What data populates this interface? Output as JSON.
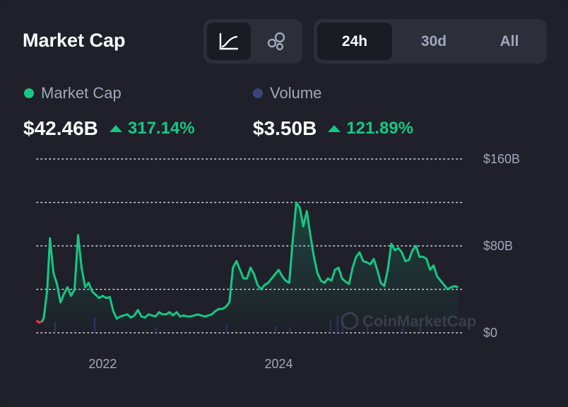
{
  "header": {
    "title": "Market Cap"
  },
  "view_toggle": {
    "options": [
      "line-chart-icon",
      "bubbles-icon"
    ],
    "selected": "line-chart-icon"
  },
  "range_toggle": {
    "options": [
      "24h",
      "30d",
      "All"
    ],
    "selected": "24h"
  },
  "metrics": {
    "market_cap": {
      "label": "Market Cap",
      "value": "$42.46B",
      "change": "317.14%",
      "color": "#16c784"
    },
    "volume": {
      "label": "Volume",
      "value": "$3.50B",
      "change": "121.89%",
      "color": "#3b4478"
    }
  },
  "colors": {
    "up": "#16c784",
    "line": "#16c784",
    "down": "#ea3943",
    "grid": "#d8dbe6",
    "axis_text": "#a1a7bb"
  },
  "watermark": "CoinMarketCap",
  "chart_data": {
    "type": "line",
    "title": "",
    "xlabel": "",
    "ylabel": "",
    "ylim": [
      0,
      160
    ],
    "y_unit": "B",
    "y_ticks": [
      "$160B",
      "$80B",
      "$0"
    ],
    "x_ticks": [
      "2022",
      "2024"
    ],
    "grid": true,
    "series": [
      {
        "name": "Market Cap",
        "x": [
          2021.31,
          2021.33,
          2021.37,
          2021.4,
          2021.44,
          2021.48,
          2021.52,
          2021.56,
          2021.6,
          2021.64,
          2021.68,
          2021.72,
          2021.76,
          2021.8,
          2021.84,
          2021.88,
          2021.92,
          2021.96,
          2022.0,
          2022.04,
          2022.08,
          2022.12,
          2022.16,
          2022.2,
          2022.24,
          2022.28,
          2022.32,
          2022.36,
          2022.4,
          2022.44,
          2022.48,
          2022.52,
          2022.56,
          2022.6,
          2022.64,
          2022.68,
          2022.72,
          2022.76,
          2022.8,
          2022.84,
          2022.88,
          2022.92,
          2022.96,
          2023.0,
          2023.04,
          2023.08,
          2023.12,
          2023.16,
          2023.2,
          2023.24,
          2023.28,
          2023.32,
          2023.36,
          2023.4,
          2023.44,
          2023.48,
          2023.52,
          2023.56,
          2023.6,
          2023.64,
          2023.68,
          2023.72,
          2023.76,
          2023.8,
          2023.84,
          2023.88,
          2023.92,
          2023.96,
          2024.0,
          2024.04,
          2024.08,
          2024.12,
          2024.16,
          2024.2,
          2024.24,
          2024.28,
          2024.32,
          2024.36,
          2024.4,
          2024.44,
          2024.48,
          2024.52,
          2024.56,
          2024.6,
          2024.64,
          2024.68,
          2024.72,
          2024.76,
          2024.8,
          2024.84,
          2024.88,
          2024.92,
          2024.96,
          2025.0,
          2025.04,
          2025.08,
          2025.12,
          2025.16,
          2025.2,
          2025.24,
          2025.28,
          2025.32,
          2025.36,
          2025.4,
          2025.44,
          2025.48,
          2025.52,
          2025.56,
          2025.6,
          2025.64,
          2025.68,
          2025.72,
          2025.76,
          2025.8,
          2025.84,
          2025.88,
          2025.92,
          2025.96,
          2026.0,
          2026.04
        ],
        "values": [
          10,
          14,
          40,
          87,
          55,
          45,
          28,
          36,
          42,
          34,
          40,
          90,
          60,
          42,
          46,
          38,
          35,
          32,
          34,
          32,
          33,
          20,
          13,
          15,
          16,
          17,
          14,
          16,
          21,
          15,
          14,
          17,
          16,
          15,
          19,
          17,
          17,
          19,
          16,
          19,
          15,
          16,
          15,
          15,
          16,
          17,
          16,
          15,
          16,
          17,
          20,
          22,
          22,
          24,
          28,
          60,
          66,
          58,
          50,
          50,
          60,
          54,
          44,
          40,
          44,
          46,
          50,
          54,
          58,
          52,
          48,
          46,
          85,
          120,
          115,
          98,
          112,
          90,
          70,
          55,
          48,
          46,
          50,
          48,
          58,
          60,
          50,
          47,
          45,
          60,
          70,
          74,
          66,
          65,
          63,
          68,
          58,
          46,
          43,
          58,
          82,
          76,
          78,
          74,
          66,
          67,
          76,
          80,
          70,
          70,
          68,
          58,
          62,
          52,
          48,
          44,
          40,
          42,
          43,
          42
        ],
        "color": "#16c784"
      }
    ],
    "volume_hint": "faint dark-blue volume bars along the bottom"
  }
}
